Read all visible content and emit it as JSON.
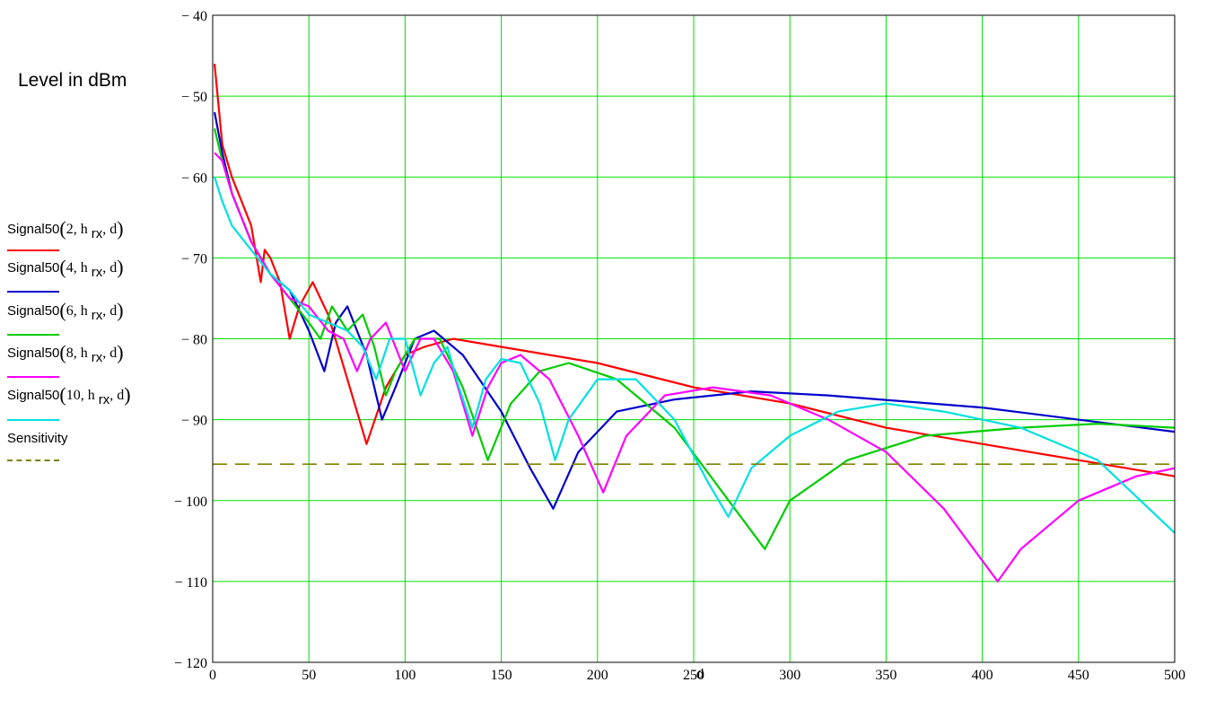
{
  "chart_data": {
    "type": "line",
    "ylabel": "Level in dBm",
    "xlabel": "d",
    "xlim": [
      0,
      500
    ],
    "ylim": [
      -120,
      -40
    ],
    "xticks": [
      0,
      50,
      100,
      150,
      200,
      250,
      300,
      350,
      400,
      450,
      500
    ],
    "yticks": [
      -40,
      -50,
      -60,
      -70,
      -80,
      -90,
      -100,
      -110,
      -120
    ],
    "grid": true,
    "grid_color": "#00e000",
    "legend_position": "left",
    "series": [
      {
        "name_prefix": "Signal50",
        "name_arg": "2",
        "name_sub": "rx",
        "color": "#ff0000",
        "points": [
          [
            1,
            -46
          ],
          [
            5,
            -56
          ],
          [
            10,
            -60
          ],
          [
            15,
            -63
          ],
          [
            20,
            -66
          ],
          [
            25,
            -73
          ],
          [
            27,
            -69
          ],
          [
            30,
            -70
          ],
          [
            35,
            -73
          ],
          [
            40,
            -80
          ],
          [
            45,
            -76
          ],
          [
            52,
            -73
          ],
          [
            60,
            -77
          ],
          [
            70,
            -85
          ],
          [
            80,
            -93
          ],
          [
            90,
            -86
          ],
          [
            100,
            -82
          ],
          [
            110,
            -81
          ],
          [
            125,
            -80
          ],
          [
            150,
            -81
          ],
          [
            200,
            -83
          ],
          [
            250,
            -86
          ],
          [
            300,
            -88
          ],
          [
            350,
            -91
          ],
          [
            400,
            -93
          ],
          [
            450,
            -95
          ],
          [
            500,
            -97
          ]
        ]
      },
      {
        "name_prefix": "Signal50",
        "name_arg": "4",
        "name_sub": "rx",
        "color": "#0000cc",
        "points": [
          [
            1,
            -52
          ],
          [
            5,
            -57
          ],
          [
            10,
            -62
          ],
          [
            20,
            -68
          ],
          [
            30,
            -72
          ],
          [
            40,
            -74
          ],
          [
            50,
            -79
          ],
          [
            58,
            -84
          ],
          [
            64,
            -78
          ],
          [
            70,
            -76
          ],
          [
            80,
            -82
          ],
          [
            88,
            -90
          ],
          [
            95,
            -86
          ],
          [
            105,
            -80
          ],
          [
            115,
            -79
          ],
          [
            130,
            -82
          ],
          [
            150,
            -89
          ],
          [
            165,
            -96
          ],
          [
            177,
            -101
          ],
          [
            190,
            -94
          ],
          [
            210,
            -89
          ],
          [
            240,
            -87.5
          ],
          [
            280,
            -86.5
          ],
          [
            320,
            -87
          ],
          [
            400,
            -88.5
          ],
          [
            500,
            -91.5
          ]
        ]
      },
      {
        "name_prefix": "Signal50",
        "name_arg": "6",
        "name_sub": "rx",
        "color": "#00cc00",
        "points": [
          [
            1,
            -54
          ],
          [
            5,
            -58
          ],
          [
            10,
            -62
          ],
          [
            20,
            -68
          ],
          [
            30,
            -72
          ],
          [
            40,
            -75
          ],
          [
            50,
            -78
          ],
          [
            56,
            -80
          ],
          [
            62,
            -76
          ],
          [
            70,
            -79
          ],
          [
            78,
            -77
          ],
          [
            84,
            -81
          ],
          [
            90,
            -87
          ],
          [
            95,
            -84
          ],
          [
            105,
            -80
          ],
          [
            118,
            -80
          ],
          [
            130,
            -86
          ],
          [
            143,
            -95
          ],
          [
            155,
            -88
          ],
          [
            170,
            -84
          ],
          [
            185,
            -83
          ],
          [
            210,
            -85
          ],
          [
            240,
            -91
          ],
          [
            265,
            -99
          ],
          [
            287,
            -106
          ],
          [
            300,
            -100
          ],
          [
            330,
            -95
          ],
          [
            370,
            -92
          ],
          [
            420,
            -91
          ],
          [
            460,
            -90.5
          ],
          [
            500,
            -91
          ]
        ]
      },
      {
        "name_prefix": "Signal50",
        "name_arg": "8",
        "name_sub": "rx",
        "color": "#ff00ff",
        "points": [
          [
            1,
            -57
          ],
          [
            5,
            -58
          ],
          [
            10,
            -62
          ],
          [
            20,
            -68
          ],
          [
            30,
            -72
          ],
          [
            40,
            -75
          ],
          [
            50,
            -76
          ],
          [
            60,
            -79
          ],
          [
            68,
            -80
          ],
          [
            75,
            -84
          ],
          [
            82,
            -80
          ],
          [
            90,
            -78
          ],
          [
            100,
            -84
          ],
          [
            108,
            -80
          ],
          [
            115,
            -80
          ],
          [
            125,
            -84
          ],
          [
            135,
            -92
          ],
          [
            143,
            -86
          ],
          [
            150,
            -83
          ],
          [
            160,
            -82
          ],
          [
            175,
            -85
          ],
          [
            190,
            -92
          ],
          [
            203,
            -99
          ],
          [
            215,
            -92
          ],
          [
            235,
            -87
          ],
          [
            260,
            -86
          ],
          [
            290,
            -87
          ],
          [
            320,
            -90
          ],
          [
            350,
            -94
          ],
          [
            380,
            -101
          ],
          [
            408,
            -110
          ],
          [
            420,
            -106
          ],
          [
            450,
            -100
          ],
          [
            480,
            -97
          ],
          [
            500,
            -96
          ]
        ]
      },
      {
        "name_prefix": "Signal50",
        "name_arg": "10",
        "name_sub": "rx",
        "color": "#00e0e0",
        "points": [
          [
            1,
            -60
          ],
          [
            5,
            -63
          ],
          [
            10,
            -66
          ],
          [
            20,
            -69
          ],
          [
            30,
            -72
          ],
          [
            40,
            -74
          ],
          [
            50,
            -77
          ],
          [
            60,
            -78
          ],
          [
            70,
            -79
          ],
          [
            78,
            -81
          ],
          [
            85,
            -85
          ],
          [
            92,
            -80
          ],
          [
            100,
            -80
          ],
          [
            108,
            -87
          ],
          [
            115,
            -83
          ],
          [
            122,
            -81
          ],
          [
            128,
            -86
          ],
          [
            135,
            -91
          ],
          [
            142,
            -85
          ],
          [
            150,
            -82.5
          ],
          [
            160,
            -83
          ],
          [
            170,
            -88
          ],
          [
            178,
            -95
          ],
          [
            185,
            -90
          ],
          [
            200,
            -85
          ],
          [
            220,
            -85
          ],
          [
            240,
            -90
          ],
          [
            258,
            -98
          ],
          [
            268,
            -102
          ],
          [
            280,
            -96
          ],
          [
            300,
            -92
          ],
          [
            325,
            -89
          ],
          [
            350,
            -88
          ],
          [
            380,
            -89
          ],
          [
            420,
            -91
          ],
          [
            460,
            -95
          ],
          [
            500,
            -104
          ]
        ]
      },
      {
        "name": "Sensitivity",
        "color": "#808000",
        "dashed": true,
        "points": [
          [
            0,
            -95.5
          ],
          [
            500,
            -95.5
          ]
        ]
      }
    ]
  }
}
